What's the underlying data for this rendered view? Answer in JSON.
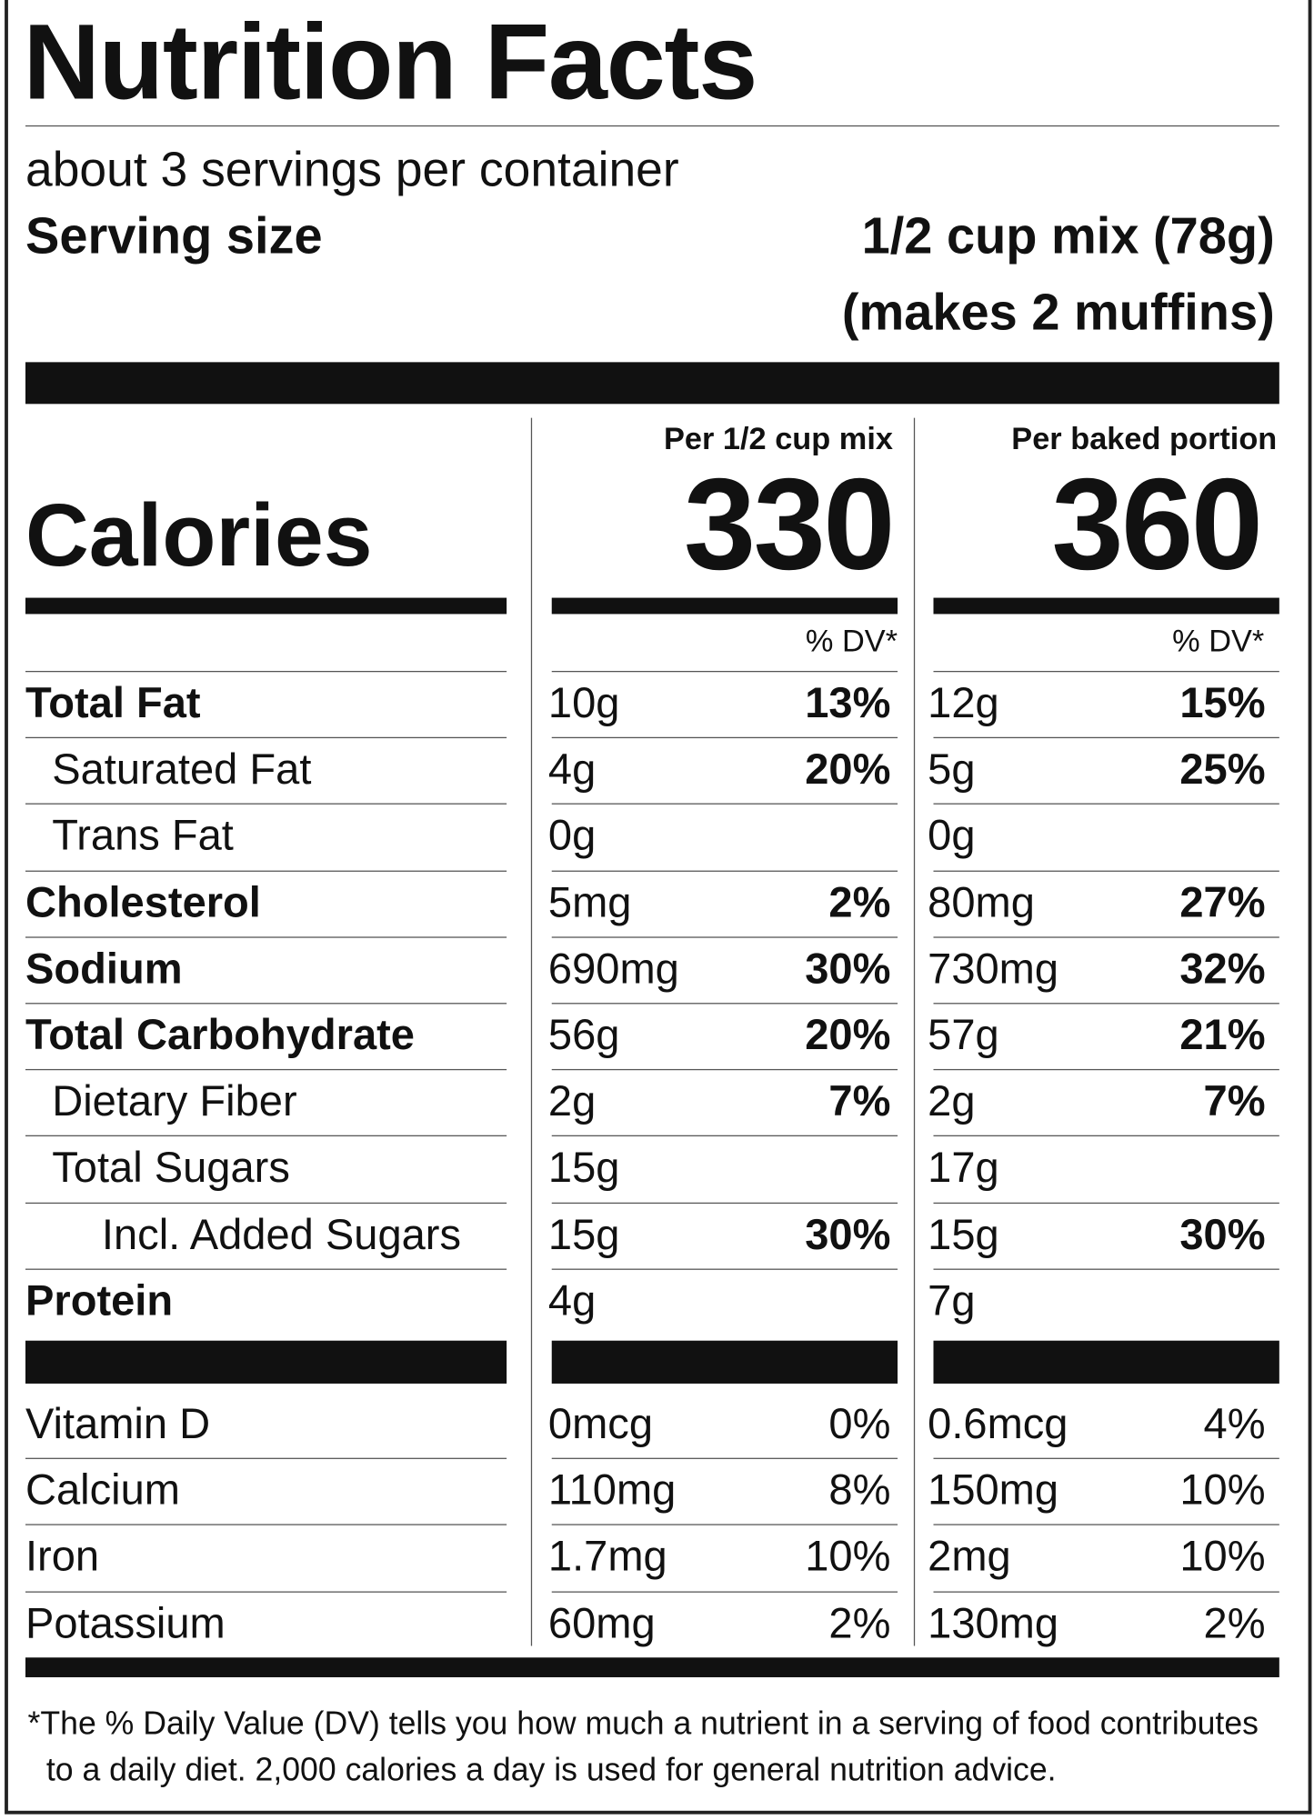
{
  "title": "Nutrition Facts",
  "servings": "about 3 servings per container",
  "serving_size": {
    "label": "Serving size",
    "lines": [
      "1/2 cup mix (78g)",
      "(makes 2 muffins)"
    ]
  },
  "calories_label": "Calories",
  "columns": [
    {
      "heading": "Per 1/2 cup mix",
      "calories": "330",
      "dv_header": "% DV*"
    },
    {
      "heading": "Per baked portion",
      "calories": "360",
      "dv_header": "% DV*"
    }
  ],
  "nutrients": [
    {
      "label": "Total Fat",
      "level": 0,
      "values": [
        [
          "10g",
          "13%"
        ],
        [
          "12g",
          "15%"
        ]
      ]
    },
    {
      "label": "Saturated Fat",
      "level": 1,
      "values": [
        [
          "4g",
          "20%"
        ],
        [
          "5g",
          "25%"
        ]
      ]
    },
    {
      "label": "Trans Fat",
      "level": 1,
      "values": [
        [
          "0g",
          null
        ],
        [
          "0g",
          null
        ]
      ]
    },
    {
      "label": "Cholesterol",
      "level": 0,
      "values": [
        [
          "5mg",
          "2%"
        ],
        [
          "80mg",
          "27%"
        ]
      ]
    },
    {
      "label": "Sodium",
      "level": 0,
      "values": [
        [
          "690mg",
          "30%"
        ],
        [
          "730mg",
          "32%"
        ]
      ]
    },
    {
      "label": "Total Carbohydrate",
      "level": 0,
      "values": [
        [
          "56g",
          "20%"
        ],
        [
          "57g",
          "21%"
        ]
      ]
    },
    {
      "label": "Dietary Fiber",
      "level": 1,
      "values": [
        [
          "2g",
          "7%"
        ],
        [
          "2g",
          "7%"
        ]
      ]
    },
    {
      "label": "Total Sugars",
      "level": 1,
      "values": [
        [
          "15g",
          null
        ],
        [
          "17g",
          null
        ]
      ]
    },
    {
      "label": "Incl. Added Sugars",
      "level": 2,
      "values": [
        [
          "15g",
          "30%"
        ],
        [
          "15g",
          "30%"
        ]
      ]
    },
    {
      "label": "Protein",
      "level": 0,
      "values": [
        [
          "4g",
          null
        ],
        [
          "7g",
          null
        ]
      ]
    }
  ],
  "vitamins": [
    {
      "label": "Vitamin D",
      "values": [
        [
          "0mcg",
          "0%"
        ],
        [
          "0.6mcg",
          "4%"
        ]
      ]
    },
    {
      "label": "Calcium",
      "values": [
        [
          "110mg",
          "8%"
        ],
        [
          "150mg",
          "10%"
        ]
      ]
    },
    {
      "label": "Iron",
      "values": [
        [
          "1.7mg",
          "10%"
        ],
        [
          "2mg",
          "10%"
        ]
      ]
    },
    {
      "label": "Potassium",
      "values": [
        [
          "60mg",
          "2%"
        ],
        [
          "130mg",
          "2%"
        ]
      ]
    }
  ],
  "footnote": [
    "*The % Daily Value (DV) tells you how much a nutrient in a serving of food contributes",
    "to a daily diet. 2,000 calories a day is used for general nutrition advice."
  ]
}
